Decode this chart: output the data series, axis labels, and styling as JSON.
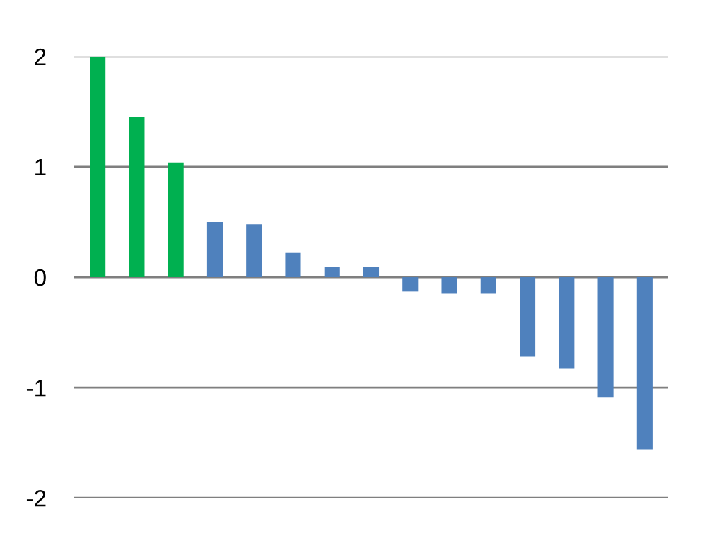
{
  "chart_data": {
    "type": "bar",
    "categories": [
      null,
      null,
      null,
      null,
      null,
      null,
      null,
      null,
      null,
      null,
      null,
      null,
      null,
      null,
      null
    ],
    "values": [
      2.0,
      1.45,
      1.04,
      0.5,
      0.48,
      0.22,
      0.09,
      0.09,
      -0.13,
      -0.15,
      -0.15,
      -0.72,
      -0.83,
      -1.09,
      -1.56
    ],
    "colors": [
      "#00b050",
      "#00b050",
      "#00b050",
      "#4f81bd",
      "#4f81bd",
      "#4f81bd",
      "#4f81bd",
      "#4f81bd",
      "#4f81bd",
      "#4f81bd",
      "#4f81bd",
      "#4f81bd",
      "#4f81bd",
      "#4f81bd",
      "#4f81bd"
    ],
    "ylim": [
      -2,
      2
    ],
    "yticks": [
      -2,
      -1,
      0,
      1,
      2
    ],
    "grid": "y"
  }
}
